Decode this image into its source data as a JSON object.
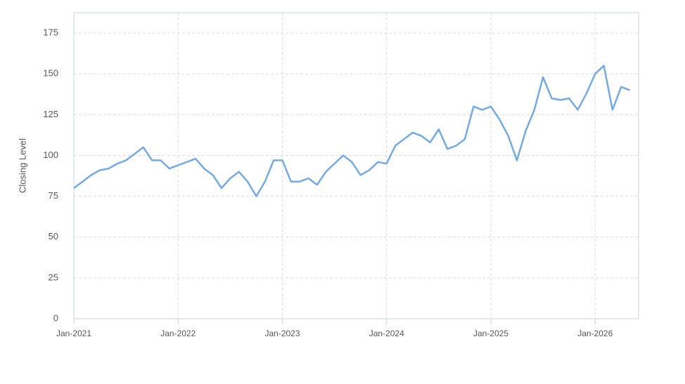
{
  "chart_data": {
    "type": "line",
    "y_label": "Closing Level",
    "x": [
      "2021-01",
      "2021-02",
      "2021-03",
      "2021-04",
      "2021-05",
      "2021-06",
      "2021-07",
      "2021-08",
      "2021-09",
      "2021-10",
      "2021-11",
      "2021-12",
      "2022-01",
      "2022-02",
      "2022-03",
      "2022-04",
      "2022-05",
      "2022-06",
      "2022-07",
      "2022-08",
      "2022-09",
      "2022-10",
      "2022-11",
      "2022-12",
      "2023-01",
      "2023-02",
      "2023-03",
      "2023-04",
      "2023-05",
      "2023-06",
      "2023-07",
      "2023-08",
      "2023-09",
      "2023-10",
      "2023-11",
      "2023-12",
      "2024-01",
      "2024-02",
      "2024-03",
      "2024-04",
      "2024-05",
      "2024-06",
      "2024-07",
      "2024-08",
      "2024-09",
      "2024-10",
      "2024-11",
      "2024-12",
      "2025-01",
      "2025-02",
      "2025-03",
      "2025-04",
      "2025-05",
      "2025-06",
      "2025-07",
      "2025-08",
      "2025-09",
      "2025-10",
      "2025-11",
      "2025-12",
      "2026-01",
      "2026-02",
      "2026-03",
      "2026-04",
      "2026-05"
    ],
    "values": [
      80,
      84,
      88,
      91,
      92,
      95,
      97,
      101,
      105,
      97,
      97,
      92,
      94,
      96,
      98,
      92,
      88,
      80,
      86,
      90,
      84,
      75,
      84,
      97,
      97,
      84,
      84,
      86,
      82,
      90,
      95,
      100,
      96,
      88,
      91,
      96,
      95,
      106,
      110,
      114,
      112,
      108,
      116,
      104,
      106,
      110,
      130,
      128,
      130,
      122,
      112,
      97,
      115,
      128,
      148,
      135,
      134,
      135,
      128,
      138,
      150,
      155,
      128,
      142,
      140
    ],
    "color": "#74aae3",
    "xlim": [
      "2021-01",
      "2026-06"
    ],
    "xticks": [
      {
        "value": "2021-01",
        "label": "Jan-2021"
      },
      {
        "value": "2022-01",
        "label": "Jan-2022"
      },
      {
        "value": "2023-01",
        "label": "Jan-2023"
      },
      {
        "value": "2024-01",
        "label": "Jan-2024"
      },
      {
        "value": "2025-01",
        "label": "Jan-2025"
      },
      {
        "value": "2026-01",
        "label": "Jan-2026"
      }
    ],
    "ylim": [
      0,
      187.5
    ],
    "yticks": [
      0,
      25,
      50,
      75,
      100,
      125,
      150,
      175
    ],
    "grid": true
  }
}
